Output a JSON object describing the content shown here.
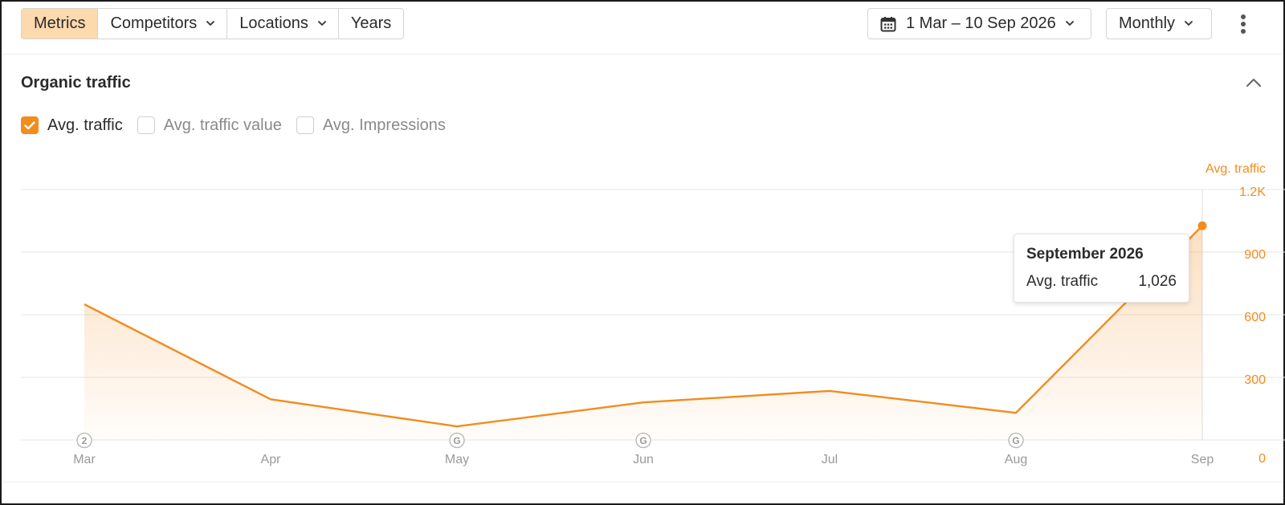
{
  "toolbar": {
    "tabs": [
      {
        "label": "Metrics",
        "active": true
      },
      {
        "label": "Competitors",
        "dropdown": true
      },
      {
        "label": "Locations",
        "dropdown": true
      },
      {
        "label": "Years"
      }
    ],
    "date_range": "1 Mar – 10 Sep 2026",
    "interval": "Monthly"
  },
  "section": {
    "title": "Organic traffic",
    "checkboxes": [
      {
        "label": "Avg. traffic",
        "checked": true
      },
      {
        "label": "Avg. traffic value",
        "checked": false
      },
      {
        "label": "Avg. Impressions",
        "checked": false
      }
    ]
  },
  "tooltip": {
    "title": "September 2026",
    "metric": "Avg. traffic",
    "value": "1,026"
  },
  "colors": {
    "accent": "#f28c1e",
    "grid": "#e6e6e6",
    "axis_text": "#9a9a9a",
    "active_tab": "#fdd9ae"
  },
  "chart_data": {
    "type": "area",
    "x": [
      "Mar",
      "Apr",
      "May",
      "Jun",
      "Jul",
      "Aug",
      "Sep"
    ],
    "series": [
      {
        "name": "Avg. traffic",
        "values": [
          650,
          195,
          65,
          180,
          235,
          130,
          1026
        ]
      }
    ],
    "ylabel": "Avg. traffic",
    "y_ticks": [
      "0",
      "300",
      "600",
      "900",
      "1.2K"
    ],
    "y_tick_values": [
      0,
      300,
      600,
      900,
      1200
    ],
    "ylim": [
      0,
      1200
    ],
    "y_axis_side": "right",
    "grid": true,
    "annotations": [
      {
        "x": "Mar",
        "label": "2"
      },
      {
        "x": "May",
        "label": "G"
      },
      {
        "x": "Jun",
        "label": "G"
      },
      {
        "x": "Aug",
        "label": "G"
      }
    ],
    "highlight": {
      "x": "Sep",
      "value": 1026
    }
  }
}
